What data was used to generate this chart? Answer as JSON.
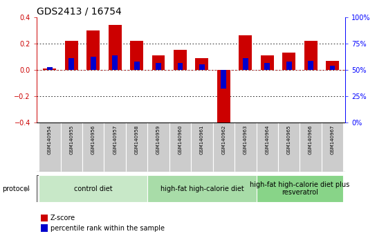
{
  "title": "GDS2413 / 16754",
  "samples": [
    "GSM140954",
    "GSM140955",
    "GSM140956",
    "GSM140957",
    "GSM140958",
    "GSM140959",
    "GSM140960",
    "GSM140961",
    "GSM140962",
    "GSM140963",
    "GSM140964",
    "GSM140965",
    "GSM140966",
    "GSM140967"
  ],
  "z_scores": [
    0.01,
    0.22,
    0.3,
    0.34,
    0.22,
    0.11,
    0.15,
    0.09,
    -0.42,
    0.26,
    0.11,
    0.13,
    0.22,
    0.07
  ],
  "pct_ranks_disp": [
    0.02,
    0.09,
    0.1,
    0.11,
    0.06,
    0.05,
    0.05,
    0.04,
    -0.14,
    0.09,
    0.05,
    0.06,
    0.07,
    0.03
  ],
  "z_color": "#cc0000",
  "pct_color": "#0000cc",
  "ylim": [
    -0.4,
    0.4
  ],
  "y_ticks": [
    -0.4,
    -0.2,
    0.0,
    0.2,
    0.4
  ],
  "y2_ticks": [
    0,
    25,
    50,
    75,
    100
  ],
  "y2_tick_labels": [
    "0%",
    "25%",
    "50%",
    "75%",
    "100%"
  ],
  "dotted_lines": [
    0.2,
    -0.2
  ],
  "zero_line_colors": [
    "#cc0000",
    "black"
  ],
  "groups": [
    {
      "label": "control diet",
      "start": 0,
      "end": 4,
      "color": "#c8e8c8"
    },
    {
      "label": "high-fat high-calorie diet",
      "start": 5,
      "end": 9,
      "color": "#a8dca8"
    },
    {
      "label": "high-fat high-calorie diet plus\nresveratrol",
      "start": 10,
      "end": 13,
      "color": "#88d488"
    }
  ],
  "protocol_label": "protocol",
  "legend": [
    {
      "label": "Z-score",
      "color": "#cc0000"
    },
    {
      "label": "percentile rank within the sample",
      "color": "#0000cc"
    }
  ],
  "bar_width": 0.6,
  "pct_bar_width": 0.25,
  "bg_color": "#ffffff",
  "sample_box_color": "#cccccc",
  "title_fontsize": 10,
  "tick_fontsize": 7,
  "sample_fontsize": 5,
  "group_fontsize": 7,
  "legend_fontsize": 7
}
